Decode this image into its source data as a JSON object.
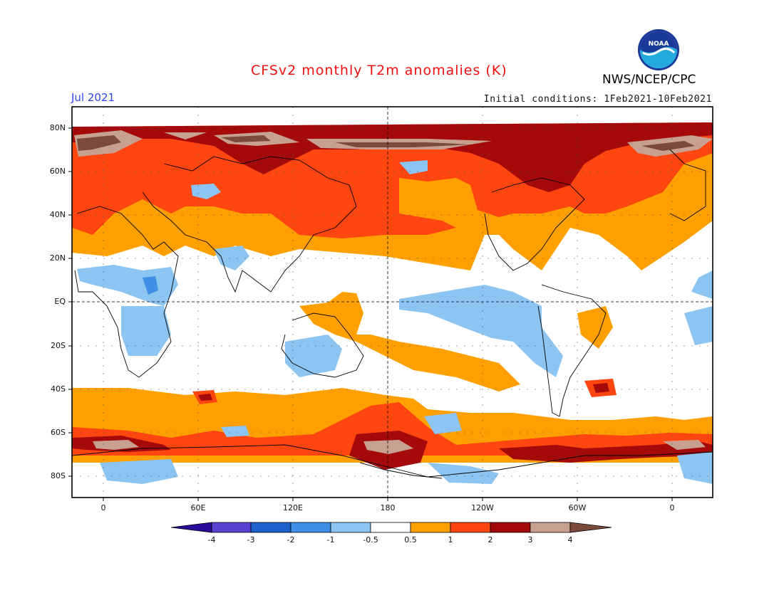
{
  "title": "CFSv2 monthly T2m anomalies (K)",
  "agency": "NWS/NCEP/CPC",
  "logo_text": "NOAA",
  "month": "Jul 2021",
  "initial_conditions": "Initial conditions: 1Feb2021-10Feb2021",
  "y_labels": [
    "80N",
    "60N",
    "40N",
    "20N",
    "EQ",
    "20S",
    "40S",
    "60S",
    "80S"
  ],
  "x_labels": [
    "0",
    "60E",
    "120E",
    "180",
    "120W",
    "60W",
    "0"
  ],
  "colorbar": {
    "labels": [
      "-4",
      "-3",
      "-2",
      "-1",
      "-0.5",
      "0.5",
      "1",
      "2",
      "3",
      "4"
    ],
    "colors": [
      "#2a0a9a",
      "#5a40d0",
      "#1e60cc",
      "#3f8fe6",
      "#8cc4f2",
      "#ffffff",
      "#ffa000",
      "#ff4510",
      "#a50a0a",
      "#c8a090",
      "#7a4a3a"
    ]
  },
  "colors": {
    "warm1": "#ffa000",
    "warm2": "#ff4510",
    "warm3": "#a50a0a",
    "warm4": "#c8a090",
    "warm5": "#7a4a3a",
    "cool1": "#8cc4f2",
    "cool2": "#3f8fe6",
    "cool3": "#1e60cc"
  }
}
